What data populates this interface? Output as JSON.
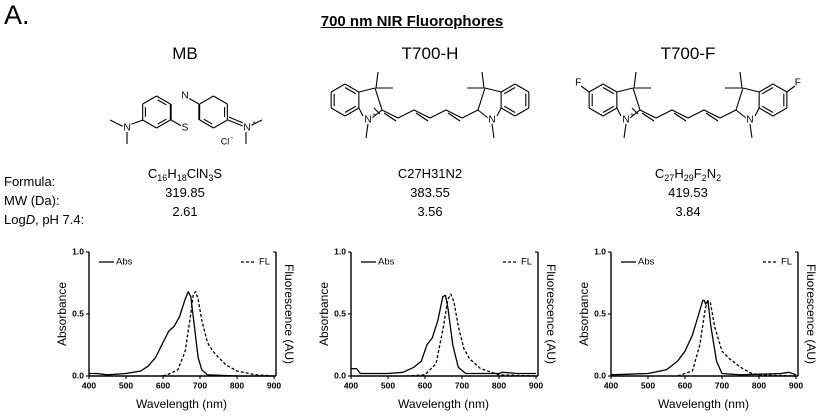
{
  "panel_label": "A.",
  "title": "700 nm NIR Fluorophores",
  "row_labels": {
    "formula": "Formula:",
    "mw": "MW (Da):",
    "logd_prefix": "Log",
    "logd_italic": "D",
    "logd_suffix": ", pH 7.4:"
  },
  "compounds": [
    {
      "name": "MB",
      "formula": "C16H18ClN3S",
      "formula_subscript": true,
      "mw": "319.85",
      "logd": "2.61",
      "structure_labels": [
        "N",
        "S",
        "N",
        "N+",
        "Cl-"
      ]
    },
    {
      "name": "T700-H",
      "formula": "C27H31N2",
      "formula_subscript": false,
      "mw": "383.55",
      "logd": "3.56",
      "structure_labels": [
        "N+",
        "N"
      ]
    },
    {
      "name": "T700-F",
      "formula": "C27H29F2N2",
      "formula_subscript": true,
      "mw": "419.53",
      "logd": "3.84",
      "structure_labels": [
        "N+",
        "N",
        "F",
        "F"
      ]
    }
  ],
  "chart_data": [
    {
      "type": "line",
      "compound": "MB",
      "xlabel": "Wavelength (nm)",
      "ylabel": "Absorbance",
      "y2label": "Fluorescence (AU)",
      "xlim": [
        400,
        900
      ],
      "ylim": [
        0,
        1.0
      ],
      "xticks": [
        "400",
        "500",
        "600",
        "700",
        "800",
        "900"
      ],
      "yticks": [
        "0.0",
        "0.5",
        "1.0"
      ],
      "grid": false,
      "legend": "top",
      "series": [
        {
          "name": "Abs",
          "style": "solid",
          "x": [
            400,
            420,
            450,
            500,
            540,
            560,
            580,
            600,
            615,
            630,
            645,
            660,
            668,
            675,
            685,
            695,
            705,
            720,
            800,
            900
          ],
          "y": [
            0.02,
            0.02,
            0.01,
            0.02,
            0.04,
            0.08,
            0.15,
            0.27,
            0.36,
            0.4,
            0.48,
            0.62,
            0.68,
            0.64,
            0.4,
            0.15,
            0.05,
            0.01,
            0.0,
            0.0
          ]
        },
        {
          "name": "FL",
          "style": "dashed",
          "x": [
            600,
            620,
            640,
            660,
            675,
            682,
            688,
            695,
            705,
            720,
            735,
            750,
            770,
            800,
            850,
            900
          ],
          "y": [
            0.0,
            0.02,
            0.05,
            0.2,
            0.5,
            0.66,
            0.68,
            0.62,
            0.45,
            0.27,
            0.2,
            0.15,
            0.09,
            0.04,
            0.01,
            0.0
          ]
        }
      ]
    },
    {
      "type": "line",
      "compound": "T700-H",
      "xlabel": "Wavelength (nm)",
      "ylabel": "Absorbance",
      "y2label": "Fluorescence (AU)",
      "xlim": [
        400,
        900
      ],
      "ylim": [
        0,
        1.0
      ],
      "xticks": [
        "400",
        "500",
        "600",
        "700",
        "800",
        "900"
      ],
      "yticks": [
        "0.0",
        "0.5",
        "1.0"
      ],
      "grid": false,
      "legend": "top",
      "series": [
        {
          "name": "Abs",
          "style": "solid",
          "x": [
            400,
            415,
            425,
            500,
            540,
            570,
            590,
            605,
            620,
            635,
            648,
            655,
            662,
            675,
            690,
            710,
            800,
            810,
            850,
            900
          ],
          "y": [
            0.06,
            0.06,
            0.02,
            0.02,
            0.03,
            0.07,
            0.12,
            0.25,
            0.31,
            0.45,
            0.64,
            0.65,
            0.55,
            0.25,
            0.07,
            0.02,
            0.02,
            0.03,
            0.02,
            0.02
          ]
        },
        {
          "name": "FL",
          "style": "dashed",
          "x": [
            550,
            600,
            630,
            650,
            662,
            670,
            678,
            690,
            705,
            720,
            750,
            800,
            900
          ],
          "y": [
            0.0,
            0.01,
            0.1,
            0.4,
            0.62,
            0.66,
            0.6,
            0.4,
            0.22,
            0.14,
            0.06,
            0.01,
            0.0
          ]
        }
      ]
    },
    {
      "type": "line",
      "compound": "T700-F",
      "xlabel": "Wavelength (nm)",
      "ylabel": "Absorbance",
      "y2label": "Fluorescence (AU)",
      "xlim": [
        400,
        900
      ],
      "ylim": [
        0,
        1.0
      ],
      "xticks": [
        "400",
        "500",
        "600",
        "700",
        "800",
        "900"
      ],
      "yticks": [
        "0.0",
        "0.5",
        "1.0"
      ],
      "grid": false,
      "legend": "top",
      "series": [
        {
          "name": "Abs",
          "style": "solid",
          "x": [
            400,
            500,
            550,
            580,
            600,
            620,
            635,
            648,
            652,
            656,
            662,
            670,
            685,
            700,
            750,
            860,
            880,
            900
          ],
          "y": [
            0.01,
            0.02,
            0.05,
            0.12,
            0.2,
            0.33,
            0.48,
            0.61,
            0.61,
            0.58,
            0.61,
            0.4,
            0.12,
            0.02,
            0.01,
            0.02,
            0.03,
            0.01
          ]
        },
        {
          "name": "FL",
          "style": "dashed",
          "x": [
            580,
            620,
            640,
            655,
            662,
            668,
            680,
            700,
            720,
            750,
            780,
            800,
            900
          ],
          "y": [
            0.0,
            0.04,
            0.25,
            0.55,
            0.6,
            0.6,
            0.4,
            0.2,
            0.14,
            0.07,
            0.02,
            0.01,
            0.0
          ]
        }
      ]
    }
  ]
}
